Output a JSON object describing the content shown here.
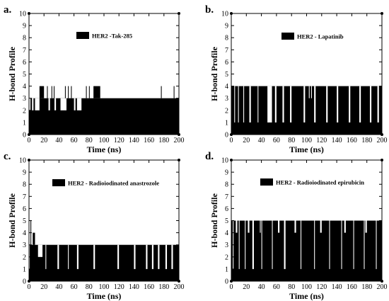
{
  "figure": {
    "background": "#ffffff",
    "ink": "#000000"
  },
  "chart_data": [
    {
      "type": "bar",
      "panel_label": "a.",
      "legend_label": "HER2 -Tak-285",
      "xlabel": "Time (ns)",
      "ylabel": "H-bond Profile",
      "xlim": [
        0,
        200
      ],
      "ylim": [
        0,
        10
      ],
      "xticks": [
        0,
        20,
        40,
        60,
        80,
        100,
        120,
        140,
        160,
        180,
        200
      ],
      "yticks": [
        0,
        1,
        2,
        3,
        4,
        5,
        6,
        7,
        8,
        9,
        10
      ],
      "legend_position": "top-center",
      "grid": false,
      "baseline": 3,
      "dips": [
        {
          "x": [
            0,
            2
          ],
          "value": 2
        },
        {
          "x": [
            4,
            6
          ],
          "value": 2
        },
        {
          "x": [
            8,
            14
          ],
          "value": 2
        },
        {
          "x": [
            26,
            28
          ],
          "value": 2
        },
        {
          "x": [
            34,
            36
          ],
          "value": 2
        },
        {
          "x": [
            42,
            50
          ],
          "value": 2
        },
        {
          "x": [
            60,
            62
          ],
          "value": 2
        },
        {
          "x": [
            64,
            70
          ],
          "value": 2
        }
      ],
      "spikes": [
        {
          "x": [
            14,
            20
          ],
          "value": 4
        },
        {
          "x": [
            24,
            25
          ],
          "value": 4
        },
        {
          "x": [
            30,
            31
          ],
          "value": 4
        },
        {
          "x": [
            33,
            34
          ],
          "value": 4
        },
        {
          "x": [
            48,
            49
          ],
          "value": 4
        },
        {
          "x": [
            52,
            53
          ],
          "value": 4
        },
        {
          "x": [
            56,
            57
          ],
          "value": 4
        },
        {
          "x": [
            76,
            77
          ],
          "value": 4
        },
        {
          "x": [
            80,
            81
          ],
          "value": 4
        },
        {
          "x": [
            86,
            95
          ],
          "value": 4
        },
        {
          "x": [
            176,
            177
          ],
          "value": 4
        },
        {
          "x": [
            193,
            194
          ],
          "value": 4
        }
      ]
    },
    {
      "type": "bar",
      "panel_label": "b.",
      "legend_label": "HER2 - Lapatinib",
      "xlabel": "Time (ns)",
      "ylabel": "H-bond Profile",
      "xlim": [
        0,
        200
      ],
      "ylim": [
        0,
        10
      ],
      "xticks": [
        0,
        20,
        40,
        60,
        80,
        100,
        120,
        140,
        160,
        180,
        200
      ],
      "yticks": [
        0,
        1,
        2,
        3,
        4,
        5,
        6,
        7,
        8,
        9,
        10
      ],
      "legend_position": "top-center",
      "grid": false,
      "baseline": 4,
      "dips": [
        {
          "x": [
            103,
            104
          ],
          "value": 3
        },
        {
          "x": [
            106,
            107
          ],
          "value": 3
        },
        {
          "x": [
            4,
            5
          ],
          "value": 1
        },
        {
          "x": [
            9,
            10
          ],
          "value": 1
        },
        {
          "x": [
            16,
            17
          ],
          "value": 1
        },
        {
          "x": [
            24,
            26
          ],
          "value": 1
        },
        {
          "x": [
            35,
            36
          ],
          "value": 1
        },
        {
          "x": [
            48,
            54
          ],
          "value": 1
        },
        {
          "x": [
            58,
            60
          ],
          "value": 1
        },
        {
          "x": [
            68,
            70
          ],
          "value": 1
        },
        {
          "x": [
            78,
            80
          ],
          "value": 1
        },
        {
          "x": [
            96,
            98
          ],
          "value": 1
        },
        {
          "x": [
            110,
            112
          ],
          "value": 1
        },
        {
          "x": [
            126,
            128
          ],
          "value": 1
        },
        {
          "x": [
            140,
            142
          ],
          "value": 1
        },
        {
          "x": [
            156,
            158
          ],
          "value": 1
        },
        {
          "x": [
            170,
            172
          ],
          "value": 1
        },
        {
          "x": [
            184,
            186
          ],
          "value": 1
        },
        {
          "x": [
            194,
            196
          ],
          "value": 1
        }
      ],
      "spikes": []
    },
    {
      "type": "bar",
      "panel_label": "c.",
      "legend_label": "HER2 - Radioiodinated anastrozole",
      "xlabel": "Time (ns)",
      "ylabel": "H-bond Profile",
      "xlim": [
        0,
        200
      ],
      "ylim": [
        0,
        10
      ],
      "xticks": [
        0,
        20,
        40,
        60,
        80,
        100,
        120,
        140,
        160,
        180,
        200
      ],
      "yticks": [
        0,
        1,
        2,
        3,
        4,
        5,
        6,
        7,
        8,
        9,
        10
      ],
      "legend_position": "top-center",
      "grid": false,
      "baseline": 3,
      "dips": [
        {
          "x": [
            0,
            1
          ],
          "value": 1
        },
        {
          "x": [
            12,
            18
          ],
          "value": 2
        },
        {
          "x": [
            22,
            23
          ],
          "value": 1
        },
        {
          "x": [
            38,
            40
          ],
          "value": 1
        },
        {
          "x": [
            52,
            53
          ],
          "value": 1
        },
        {
          "x": [
            64,
            66
          ],
          "value": 1
        },
        {
          "x": [
            86,
            88
          ],
          "value": 1
        },
        {
          "x": [
            118,
            120
          ],
          "value": 1
        },
        {
          "x": [
            140,
            142
          ],
          "value": 1
        },
        {
          "x": [
            156,
            158
          ],
          "value": 1
        },
        {
          "x": [
            164,
            166
          ],
          "value": 1
        },
        {
          "x": [
            172,
            174
          ],
          "value": 1
        },
        {
          "x": [
            182,
            184
          ],
          "value": 1
        },
        {
          "x": [
            190,
            192
          ],
          "value": 1
        }
      ],
      "spikes": [
        {
          "x": [
            2,
            3
          ],
          "value": 5
        },
        {
          "x": [
            5,
            8
          ],
          "value": 4
        },
        {
          "x": [
            18,
            19
          ],
          "value": 3
        }
      ]
    },
    {
      "type": "bar",
      "panel_label": "d.",
      "legend_label": "HER2 - Radioiodinated epirubicin",
      "xlabel": "Time (ns)",
      "ylabel": "H-bond Profile",
      "xlim": [
        0,
        200
      ],
      "ylim": [
        0,
        10
      ],
      "xticks": [
        0,
        20,
        40,
        60,
        80,
        100,
        120,
        140,
        160,
        180,
        200
      ],
      "yticks": [
        0,
        1,
        2,
        3,
        4,
        5,
        6,
        7,
        8,
        9,
        10
      ],
      "legend_position": "top-center",
      "grid": false,
      "baseline": 5,
      "dips": [
        {
          "x": [
            6,
            8
          ],
          "value": 4
        },
        {
          "x": [
            22,
            24
          ],
          "value": 4
        },
        {
          "x": [
            38,
            39
          ],
          "value": 4
        },
        {
          "x": [
            62,
            64
          ],
          "value": 4
        },
        {
          "x": [
            84,
            86
          ],
          "value": 4
        },
        {
          "x": [
            118,
            120
          ],
          "value": 4
        },
        {
          "x": [
            150,
            152
          ],
          "value": 4
        },
        {
          "x": [
            178,
            180
          ],
          "value": 4
        },
        {
          "x": [
            2,
            3
          ],
          "value": 1
        },
        {
          "x": [
            10,
            11
          ],
          "value": 1
        },
        {
          "x": [
            18,
            19
          ],
          "value": 1
        },
        {
          "x": [
            28,
            30
          ],
          "value": 1
        },
        {
          "x": [
            40,
            41
          ],
          "value": 1
        },
        {
          "x": [
            54,
            55
          ],
          "value": 1
        },
        {
          "x": [
            70,
            72
          ],
          "value": 1
        },
        {
          "x": [
            92,
            93
          ],
          "value": 1
        },
        {
          "x": [
            110,
            111
          ],
          "value": 1
        },
        {
          "x": [
            130,
            131
          ],
          "value": 1
        },
        {
          "x": [
            146,
            147
          ],
          "value": 1
        },
        {
          "x": [
            162,
            163
          ],
          "value": 1
        },
        {
          "x": [
            176,
            177
          ],
          "value": 1
        },
        {
          "x": [
            192,
            193
          ],
          "value": 1
        }
      ],
      "spikes": []
    }
  ]
}
